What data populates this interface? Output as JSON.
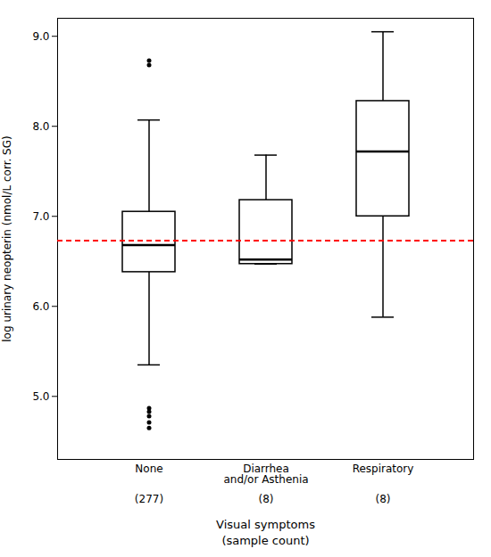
{
  "chart_data": {
    "type": "box",
    "ylabel": "log urinary neopterin (nmol/L corr. SG)",
    "xlabel": [
      "Visual symptoms",
      "(sample count)"
    ],
    "categories": [
      "None",
      "Diarrhea\nand/or Asthenia",
      "Respiratory"
    ],
    "sample_counts": [
      "(277)",
      "(8)",
      "(8)"
    ],
    "boxes": [
      {
        "median": 6.68,
        "q1": 6.38,
        "q3": 7.05,
        "whislo": 5.35,
        "whishi": 8.07,
        "fliers": [
          8.73,
          8.68,
          4.87,
          4.83,
          4.78,
          4.71,
          4.65
        ]
      },
      {
        "median": 6.52,
        "q1": 6.47,
        "q3": 7.18,
        "whislo": 6.47,
        "whishi": 7.68,
        "fliers": []
      },
      {
        "median": 7.72,
        "q1": 7.0,
        "q3": 8.28,
        "whislo": 5.88,
        "whishi": 9.05,
        "fliers": []
      }
    ],
    "hline": {
      "y": 6.73,
      "color": "#ff0000",
      "line_style": "dashed"
    },
    "ylim": [
      4.3,
      9.2
    ],
    "yticks": [
      5,
      6,
      7,
      8,
      9
    ],
    "grid": false
  }
}
